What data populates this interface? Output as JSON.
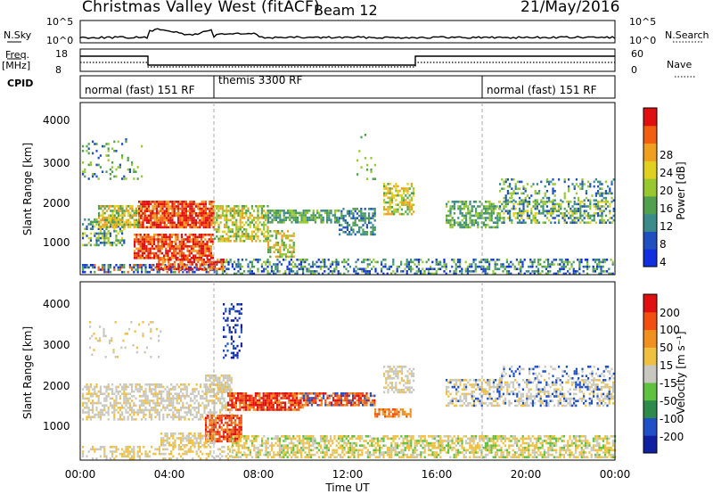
{
  "header": {
    "station": "Christmas Valley West (fitACF)",
    "beam": "Beam 12",
    "date": "21/May/2016"
  },
  "side_labels": {
    "nsky": "N.Sky",
    "freq": "Freq.",
    "freq_unit": "[MHz]",
    "cpid": "CPID",
    "nsearch": "N.Search",
    "nave": "Nave"
  },
  "small_axes": {
    "nsky_ticks": [
      "10^5",
      "10^0"
    ],
    "nsearch_ticks": [
      "10^5",
      "10^0"
    ],
    "freq_ticks": [
      "18",
      "8"
    ],
    "nave_ticks": [
      "60",
      "0"
    ]
  },
  "cpid_segments": [
    {
      "label": "normal (fast) 151 RF",
      "start_hour": 0
    },
    {
      "label": "themis 3300 RF",
      "start_hour": 6
    },
    {
      "label": "normal (fast) 151 RF",
      "start_hour": 18
    }
  ],
  "chart_data": [
    {
      "type": "heatmap",
      "name": "power",
      "ylabel": "Slant Range [km]",
      "yticks": [
        "4000",
        "3000",
        "2000",
        "1000"
      ],
      "ylim": [
        180,
        4600
      ],
      "xlim": [
        0,
        24
      ],
      "colorbar": {
        "label": "Power [dB]",
        "ticks": [
          "28",
          "24",
          "20",
          "16",
          "12",
          "8",
          "4"
        ],
        "colors": [
          "#1030e0",
          "#2050c0",
          "#3c8a8a",
          "#50a050",
          "#98c830",
          "#e0d020",
          "#f0a020",
          "#f06010",
          "#e01010"
        ]
      }
    },
    {
      "type": "heatmap",
      "name": "velocity",
      "ylabel": "Slant Range [km]",
      "yticks": [
        "4000",
        "3000",
        "2000",
        "1000"
      ],
      "ylim": [
        180,
        4600
      ],
      "xlim": [
        0,
        24
      ],
      "xlabel": "Time UT",
      "xticks": [
        "00:00",
        "04:00",
        "08:00",
        "12:00",
        "16:00",
        "20:00",
        "00:00"
      ],
      "colorbar": {
        "label": "Velocity [m s⁻¹]",
        "ticks": [
          "200",
          "100",
          "50",
          "15",
          "-15",
          "-50",
          "-100",
          "-200"
        ],
        "colors": [
          "#1020a0",
          "#2050c8",
          "#2e8a4a",
          "#60c040",
          "#c8c8c0",
          "#f0c040",
          "#f09020",
          "#f05010",
          "#e01010"
        ]
      }
    }
  ]
}
